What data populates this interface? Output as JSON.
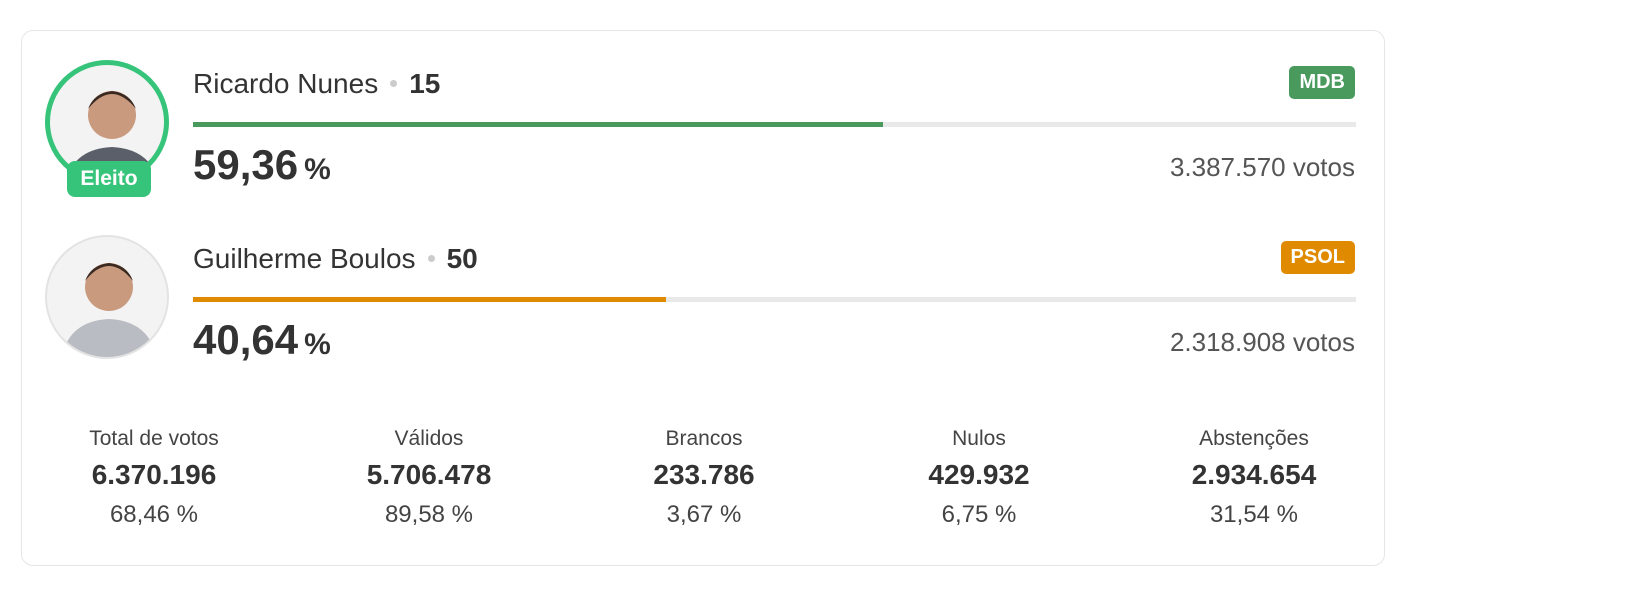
{
  "candidates": [
    {
      "name": "Ricardo Nunes",
      "number": "15",
      "party": "MDB",
      "color": "#4a9a5e",
      "badge": "Eleito",
      "percent": {
        "value": 59.36,
        "label": "59,36"
      },
      "percent_unit": "%",
      "votes": "3.387.570 votos"
    },
    {
      "name": "Guilherme Boulos",
      "number": "50",
      "party": "PSOL",
      "color": "#e08a00",
      "percent": {
        "value": 40.64,
        "label": "40,64"
      },
      "percent_unit": "%",
      "votes": "2.318.908 votos"
    }
  ],
  "stats": [
    {
      "label": "Total de votos",
      "value": "6.370.196",
      "percent": "68,46 %"
    },
    {
      "label": "Válidos",
      "value": "5.706.478",
      "percent": "89,58 %"
    },
    {
      "label": "Brancos",
      "value": "233.786",
      "percent": "3,67 %"
    },
    {
      "label": "Nulos",
      "value": "429.932",
      "percent": "6,75 %"
    },
    {
      "label": "Abstenções",
      "value": "2.934.654",
      "percent": "31,54 %"
    }
  ]
}
